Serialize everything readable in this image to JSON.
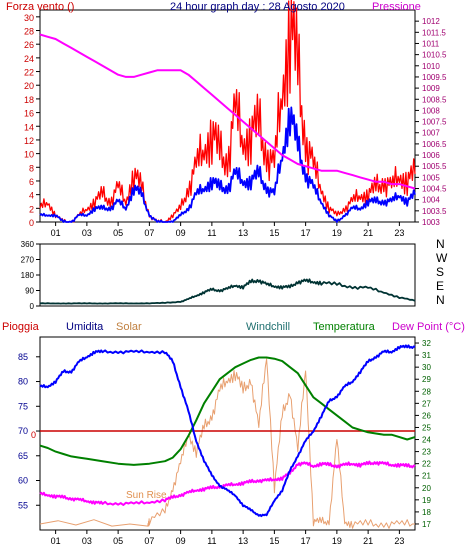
{
  "header": {
    "left_label": "Forza vento ()",
    "title": "24 hour graph day : 28 Agosto 2020",
    "right_label": "Pressione"
  },
  "compass": [
    "N",
    "W",
    "S",
    "E",
    "N"
  ],
  "bottom_legend": {
    "pioggia": "Pioggia",
    "umidita": "Umidita",
    "solar": "Solar",
    "windchill": "Windchill",
    "temperatura": "Temperatura",
    "dewpoint": "Dew Point (°C)"
  },
  "annotations": {
    "sun_rise": "Sun Rise",
    "rain_zero": "0"
  },
  "colors": {
    "frame": "#000000",
    "wind_gust": "#ff0000",
    "wind_avg": "#0000ff",
    "pressure": "#ff00ff",
    "direction": "#003333",
    "humidity": "#0000ff",
    "solar": "#e8a070",
    "temperature": "#008000",
    "dewpoint": "#ff00ff",
    "rain": "#cc0000",
    "left_axis_text": "#cc0000",
    "right_axis_text": "#a00070",
    "humidity_axis_text": "#000090",
    "temp_axis_text": "#006000"
  },
  "chart_data": [
    {
      "type": "line",
      "title": "24 hour graph day : 28 Agosto 2020",
      "x_ticks": [
        "01",
        "03",
        "05",
        "07",
        "09",
        "11",
        "13",
        "15",
        "17",
        "19",
        "21",
        "23"
      ],
      "xlim": [
        0,
        24
      ],
      "left_axis": {
        "label": "Forza vento ()",
        "ylim": [
          0,
          31
        ],
        "ticks": [
          0,
          2,
          4,
          6,
          8,
          10,
          12,
          14,
          16,
          18,
          20,
          22,
          24,
          26,
          28,
          30
        ]
      },
      "right_axis": {
        "label": "Pressione",
        "ylim": [
          1003,
          1012.5
        ],
        "ticks": [
          "1003",
          "1003.5",
          "1004",
          "1004.5",
          "1005",
          "1005.5",
          "1006",
          "1006.5",
          "1007",
          "1007.5",
          "1008",
          "1008.5",
          "1009",
          "1009.5",
          "1010",
          "1010.5",
          "1011",
          "1011.5",
          "1012"
        ]
      },
      "grid": false,
      "series": [
        {
          "name": "Pressione",
          "axis": "right",
          "x": [
            0,
            0.5,
            1,
            1.5,
            2,
            2.5,
            3,
            3.5,
            4,
            4.5,
            5,
            5.5,
            6,
            6.5,
            7,
            7.5,
            8,
            8.5,
            9,
            9.5,
            10,
            10.5,
            11,
            11.5,
            12,
            12.5,
            13,
            13.5,
            14,
            14.5,
            15,
            15.5,
            16,
            16.5,
            17,
            17.5,
            18,
            18.5,
            19,
            19.5,
            20,
            20.5,
            21,
            21.5,
            22,
            22.5,
            23,
            23.5,
            24
          ],
          "values": [
            1011.4,
            1011.3,
            1011.2,
            1011,
            1010.8,
            1010.6,
            1010.4,
            1010.2,
            1010,
            1009.8,
            1009.6,
            1009.5,
            1009.5,
            1009.6,
            1009.7,
            1009.8,
            1009.8,
            1009.8,
            1009.8,
            1009.6,
            1009.3,
            1009,
            1008.7,
            1008.4,
            1008.1,
            1007.8,
            1007.5,
            1007.2,
            1006.9,
            1006.6,
            1006.3,
            1006,
            1005.8,
            1005.6,
            1005.5,
            1005.4,
            1005.3,
            1005.3,
            1005.3,
            1005.2,
            1005.1,
            1005,
            1004.9,
            1004.8,
            1004.8,
            1004.7,
            1004.7,
            1004.6,
            1004.5
          ]
        },
        {
          "name": "gust",
          "axis": "left",
          "x": [
            0,
            0.5,
            1,
            1.5,
            2,
            2.5,
            3,
            3.5,
            4,
            4.5,
            5,
            5.5,
            6,
            6.5,
            7,
            7.5,
            8,
            8.5,
            9,
            9.5,
            10,
            10.5,
            11,
            11.5,
            12,
            12.5,
            13,
            13.5,
            14,
            14.5,
            15,
            15.5,
            16,
            16.5,
            17,
            17.5,
            18,
            18.5,
            19,
            19.5,
            20,
            20.5,
            21,
            21.5,
            22,
            22.5,
            23,
            23.5,
            24
          ],
          "values": [
            2,
            3,
            1,
            0,
            0,
            1,
            2,
            3,
            4,
            3,
            5,
            3,
            7,
            5,
            1,
            0,
            0,
            1,
            2,
            5,
            8,
            11,
            13,
            10,
            9,
            16,
            12,
            13,
            14,
            10,
            8,
            20,
            29,
            22,
            12,
            8,
            5,
            2,
            1,
            2,
            3,
            4,
            4,
            5,
            6,
            5,
            7,
            6,
            7
          ]
        },
        {
          "name": "avg",
          "axis": "left",
          "x": [
            0,
            0.5,
            1,
            1.5,
            2,
            2.5,
            3,
            3.5,
            4,
            4.5,
            5,
            5.5,
            6,
            6.5,
            7,
            7.5,
            8,
            8.5,
            9,
            9.5,
            10,
            10.5,
            11,
            11.5,
            12,
            12.5,
            13,
            13.5,
            14,
            14.5,
            15,
            15.5,
            16,
            16.5,
            17,
            17.5,
            18,
            18.5,
            19,
            19.5,
            20,
            20.5,
            21,
            21.5,
            22,
            22.5,
            23,
            23.5,
            24
          ],
          "values": [
            1,
            1,
            1,
            0,
            0,
            1,
            1,
            2,
            2,
            2,
            3,
            2,
            5,
            4,
            1,
            0,
            0,
            0,
            1,
            2,
            4,
            5,
            6,
            5,
            5,
            7,
            6,
            6,
            7,
            5,
            4,
            10,
            16,
            11,
            7,
            5,
            3,
            1,
            0,
            1,
            2,
            2,
            3,
            3,
            3,
            3,
            4,
            3,
            4
          ]
        }
      ]
    },
    {
      "type": "line",
      "title": "",
      "xlim": [
        0,
        24
      ],
      "ylim": [
        0,
        360
      ],
      "y_ticks": [
        0,
        90,
        180,
        270,
        360
      ],
      "series": [
        {
          "name": "direction",
          "x": [
            0,
            1,
            2,
            3,
            4,
            5,
            6,
            7,
            8,
            9,
            9.5,
            10,
            10.5,
            11,
            11.5,
            12,
            12.5,
            13,
            13.5,
            14,
            14.5,
            15,
            15.5,
            16,
            16.5,
            17,
            17.5,
            18,
            19,
            20,
            21,
            22,
            23,
            24
          ],
          "values": [
            15,
            15,
            15,
            15,
            15,
            15,
            15,
            16,
            18,
            25,
            40,
            60,
            80,
            95,
            90,
            100,
            120,
            110,
            140,
            150,
            125,
            115,
            110,
            110,
            140,
            145,
            140,
            135,
            125,
            110,
            105,
            80,
            50,
            30
          ]
        }
      ]
    },
    {
      "type": "line",
      "title": "",
      "xlim": [
        0,
        24
      ],
      "left_axis": {
        "label": "Umidita",
        "ylim": [
          50,
          89
        ],
        "ticks": [
          55,
          60,
          65,
          70,
          75,
          80,
          85
        ]
      },
      "right_axis": {
        "label": "Temperatura",
        "ylim": [
          16.5,
          32.5
        ],
        "ticks": [
          17,
          18,
          19,
          20,
          21,
          22,
          23,
          24,
          25,
          26,
          27,
          28,
          29,
          30,
          31,
          32
        ]
      },
      "series": [
        {
          "name": "Umidita",
          "axis": "left",
          "x": [
            0,
            0.5,
            1,
            1.5,
            2,
            2.5,
            3,
            3.5,
            4,
            5,
            6,
            7,
            8,
            8.5,
            9,
            9.5,
            10,
            10.5,
            11,
            11.5,
            12,
            12.5,
            13,
            13.5,
            14,
            14.5,
            15,
            15.5,
            16,
            16.5,
            17,
            17.5,
            18,
            18.5,
            19,
            19.5,
            20,
            20.5,
            21,
            21.5,
            22,
            22.5,
            23,
            23.5,
            24
          ],
          "values": [
            79,
            79,
            80,
            82,
            82,
            84,
            85,
            86,
            86,
            86,
            86,
            86,
            86,
            84,
            79,
            74,
            68,
            64,
            61,
            59,
            58,
            57,
            55,
            54,
            53,
            53,
            56,
            58,
            62,
            65,
            68,
            70,
            73,
            76,
            77,
            79,
            80,
            82,
            84,
            85,
            86,
            86,
            87,
            87,
            87
          ]
        },
        {
          "name": "Temperatura",
          "axis": "right",
          "x": [
            0,
            0.5,
            1,
            1.5,
            2,
            2.5,
            3,
            3.5,
            4,
            5,
            6,
            7,
            8,
            8.5,
            9,
            9.5,
            10,
            10.5,
            11,
            11.5,
            12,
            12.5,
            13,
            13.5,
            14,
            14.5,
            15,
            15.5,
            16,
            16.5,
            17,
            17.5,
            18,
            18.5,
            19,
            19.5,
            20,
            20.5,
            21,
            21.5,
            22,
            22.5,
            23,
            23.5,
            24
          ],
          "values": [
            23.5,
            23.3,
            23,
            22.8,
            22.6,
            22.5,
            22.4,
            22.3,
            22.2,
            22,
            21.9,
            22,
            22.2,
            22.5,
            23.2,
            24.3,
            25.6,
            27,
            28,
            29,
            29.5,
            30,
            30.3,
            30.6,
            30.8,
            30.8,
            30.7,
            30.5,
            30,
            29.5,
            28.5,
            27.5,
            27,
            26.5,
            26,
            25.5,
            25,
            24.8,
            24.6,
            24.5,
            24.4,
            24.4,
            24.2,
            24,
            24.2
          ]
        },
        {
          "name": "Dew Point (°C)",
          "axis": "right",
          "x": [
            0,
            0.5,
            1,
            1.5,
            2,
            2.5,
            3,
            3.5,
            4,
            5,
            6,
            7,
            8,
            8.5,
            9,
            9.5,
            10,
            10.5,
            11,
            11.5,
            12,
            12.5,
            13,
            13.5,
            14,
            14.5,
            15,
            15.5,
            16,
            16.5,
            17,
            17.5,
            18,
            18.5,
            19,
            19.5,
            20,
            20.5,
            21,
            21.5,
            22,
            22.5,
            23,
            23.5,
            24
          ],
          "values": [
            19.5,
            19.4,
            19.3,
            19.2,
            19.1,
            19,
            18.9,
            18.8,
            18.7,
            18.7,
            18.7,
            18.8,
            19,
            19.2,
            19.4,
            19.6,
            19.8,
            19.9,
            20,
            20.1,
            20.2,
            20.3,
            20.4,
            20.5,
            20.6,
            20.6,
            20.7,
            20.8,
            21.2,
            22,
            22,
            21.8,
            22,
            21.9,
            21.8,
            21.9,
            22,
            21.9,
            22,
            22.1,
            22,
            21.9,
            21.9,
            21.8,
            21.8
          ]
        },
        {
          "name": "Solar",
          "axis": "right",
          "x": [
            0,
            6.9,
            7,
            8,
            8.5,
            9,
            9.5,
            10,
            10.5,
            11,
            11.5,
            12,
            12.5,
            13,
            13.5,
            14,
            14.5,
            15,
            15.5,
            16,
            16.5,
            17,
            17.5,
            18,
            18.5,
            19,
            19.5,
            20,
            21,
            22,
            23,
            24
          ],
          "values": [
            17,
            17,
            17.3,
            18,
            20,
            22,
            24.5,
            23,
            25,
            26,
            28,
            29,
            29.5,
            28,
            29,
            25,
            31,
            20,
            26,
            28,
            23,
            30,
            17.2,
            17.2,
            17.2,
            24,
            17.2,
            17,
            17,
            17,
            17,
            17
          ]
        },
        {
          "name": "Pioggia",
          "axis": "left",
          "x": [
            0,
            24
          ],
          "values": [
            70,
            70
          ]
        }
      ]
    }
  ]
}
